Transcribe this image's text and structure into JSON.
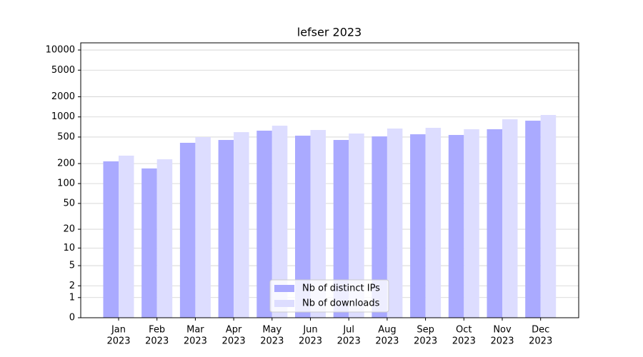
{
  "chart_data": {
    "type": "bar",
    "title": "lefser 2023",
    "categories": [
      [
        "Jan",
        "2023"
      ],
      [
        "Feb",
        "2023"
      ],
      [
        "Mar",
        "2023"
      ],
      [
        "Apr",
        "2023"
      ],
      [
        "May",
        "2023"
      ],
      [
        "Jun",
        "2023"
      ],
      [
        "Jul",
        "2023"
      ],
      [
        "Aug",
        "2023"
      ],
      [
        "Sep",
        "2023"
      ],
      [
        "Oct",
        "2023"
      ],
      [
        "Nov",
        "2023"
      ],
      [
        "Dec",
        "2023"
      ]
    ],
    "series": [
      {
        "name": "Nb of distinct IPs",
        "color": "#aaaaff",
        "values": [
          216,
          169,
          410,
          452,
          623,
          524,
          452,
          511,
          550,
          537,
          654,
          878
        ]
      },
      {
        "name": "Nb of downloads",
        "color": "#ddddff",
        "values": [
          263,
          232,
          499,
          592,
          739,
          638,
          564,
          670,
          687,
          654,
          922,
          1069
        ]
      }
    ],
    "yscale": "log1p",
    "ylim": [
      0,
      12800
    ],
    "yticks": [
      0,
      1,
      2,
      5,
      10,
      20,
      50,
      100,
      200,
      500,
      1000,
      2000,
      5000,
      10000
    ],
    "grid": true,
    "legend": "lower center"
  }
}
